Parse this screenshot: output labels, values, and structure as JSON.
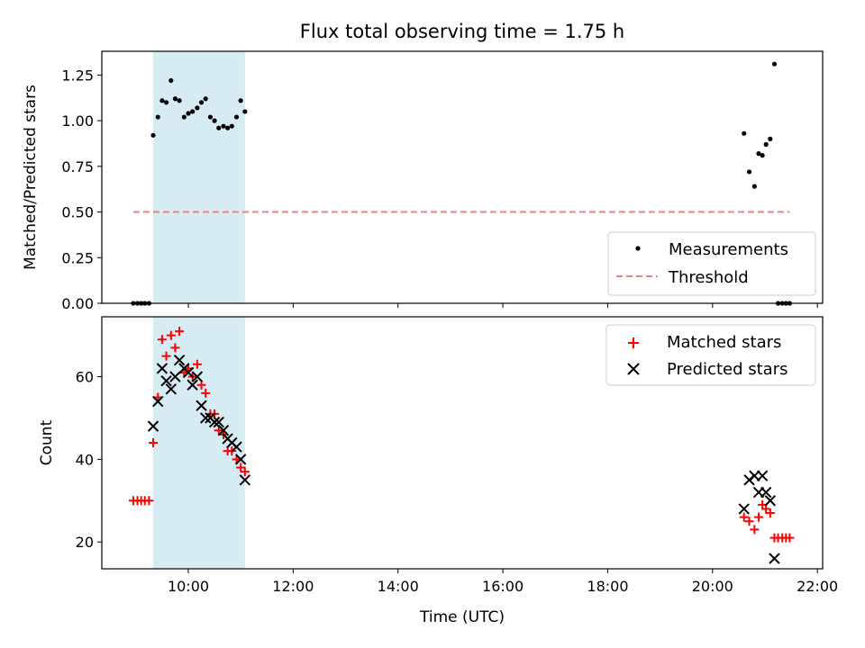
{
  "chart_data": [
    {
      "type": "scatter",
      "title": "Flux total observing time = 1.75 h",
      "xlabel": "",
      "ylabel": "Matched/Predicted stars",
      "xlim": [
        8.35,
        22.1
      ],
      "ylim": [
        0,
        1.38
      ],
      "yticks": [
        0,
        0.25,
        0.5,
        0.75,
        1.0,
        1.25
      ],
      "yticklabels": [
        "0.00",
        "0.25",
        "0.50",
        "0.75",
        "1.00",
        "1.25"
      ],
      "shaded_interval": [
        9.33,
        11.08
      ],
      "legend": {
        "position": "lower-right",
        "entries": [
          "Measurements",
          "Threshold"
        ]
      },
      "series": [
        {
          "name": "Measurements",
          "marker": "dot",
          "color": "#000000",
          "x": [
            8.95,
            9.03,
            9.1,
            9.17,
            9.25,
            9.33,
            9.42,
            9.5,
            9.58,
            9.67,
            9.75,
            9.83,
            9.92,
            10.0,
            10.08,
            10.17,
            10.25,
            10.33,
            10.42,
            10.5,
            10.58,
            10.67,
            10.75,
            10.83,
            10.92,
            11.0,
            11.08,
            20.6,
            20.7,
            20.8,
            20.88,
            20.95,
            21.02,
            21.1,
            21.18,
            21.25,
            21.33,
            21.4,
            21.47
          ],
          "y": [
            0,
            0,
            0,
            0,
            0,
            0.92,
            1.02,
            1.11,
            1.1,
            1.22,
            1.12,
            1.11,
            1.02,
            1.04,
            1.05,
            1.07,
            1.1,
            1.12,
            1.02,
            1.0,
            0.96,
            0.97,
            0.96,
            0.97,
            1.02,
            1.11,
            1.05,
            0.93,
            0.72,
            0.64,
            0.82,
            0.81,
            0.87,
            0.9,
            1.31,
            0,
            0,
            0,
            0
          ]
        },
        {
          "name": "Threshold",
          "style": "dashed",
          "color": "#f08080",
          "x": [
            8.95,
            21.47
          ],
          "y": [
            0.5,
            0.5
          ]
        }
      ]
    },
    {
      "type": "scatter",
      "title": "",
      "xlabel": "Time (UTC)",
      "ylabel": "Count",
      "xlim": [
        8.35,
        22.1
      ],
      "ylim": [
        13.5,
        74.5
      ],
      "yticks": [
        20,
        40,
        60
      ],
      "yticklabels": [
        "20",
        "40",
        "60"
      ],
      "xticks": [
        10,
        12,
        14,
        16,
        18,
        20,
        22
      ],
      "xticklabels": [
        "10:00",
        "12:00",
        "14:00",
        "16:00",
        "18:00",
        "20:00",
        "22:00"
      ],
      "shaded_interval": [
        9.33,
        11.08
      ],
      "legend": {
        "position": "upper-right",
        "entries": [
          "Matched stars",
          "Predicted stars"
        ]
      },
      "series": [
        {
          "name": "Matched stars",
          "marker": "plus",
          "color": "#ff0000",
          "x": [
            8.95,
            9.03,
            9.1,
            9.17,
            9.25,
            9.33,
            9.42,
            9.5,
            9.58,
            9.67,
            9.75,
            9.83,
            9.92,
            10.0,
            10.08,
            10.17,
            10.25,
            10.33,
            10.42,
            10.5,
            10.58,
            10.67,
            10.75,
            10.83,
            10.92,
            11.0,
            11.08,
            20.6,
            20.7,
            20.8,
            20.88,
            20.95,
            21.02,
            21.1,
            21.18,
            21.25,
            21.33,
            21.4,
            21.47
          ],
          "y": [
            30,
            30,
            30,
            30,
            30,
            44,
            55,
            69,
            65,
            70,
            67,
            71,
            61,
            62,
            60,
            63,
            58,
            56,
            51,
            51,
            47,
            46,
            42,
            42,
            40,
            38,
            37,
            26,
            25,
            23,
            26,
            29,
            28,
            27,
            21,
            21,
            21,
            21,
            21
          ]
        },
        {
          "name": "Predicted stars",
          "marker": "x",
          "color": "#000000",
          "x": [
            9.33,
            9.42,
            9.5,
            9.58,
            9.67,
            9.75,
            9.83,
            9.92,
            10.0,
            10.08,
            10.17,
            10.25,
            10.33,
            10.42,
            10.5,
            10.58,
            10.67,
            10.75,
            10.83,
            10.92,
            11.0,
            11.08,
            20.6,
            20.7,
            20.8,
            20.88,
            20.95,
            21.02,
            21.1,
            21.18
          ],
          "y": [
            48,
            54,
            62,
            59,
            57,
            60,
            64,
            62,
            61,
            58,
            60,
            53,
            50,
            50,
            49,
            49,
            47,
            45,
            44,
            43,
            40,
            35,
            28,
            35,
            36,
            32,
            36,
            32,
            30,
            16
          ]
        }
      ]
    }
  ]
}
